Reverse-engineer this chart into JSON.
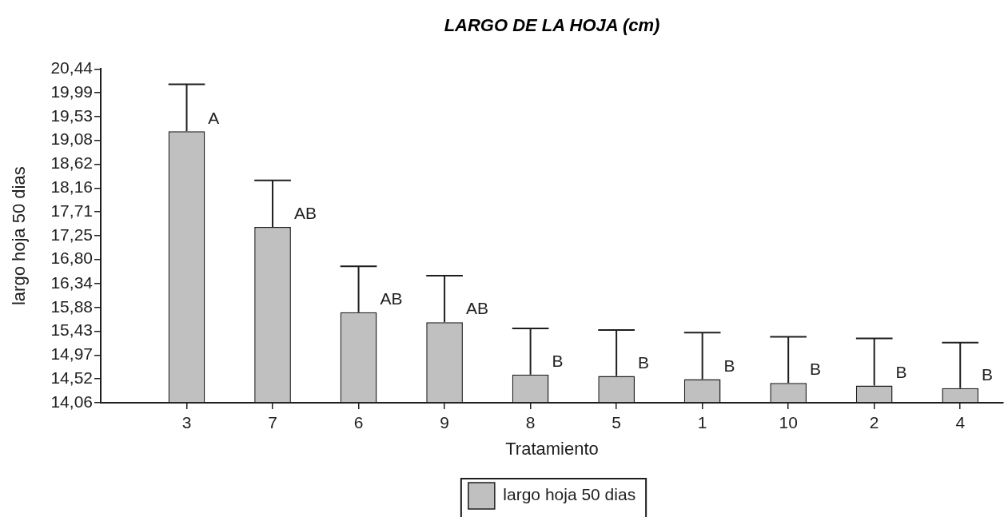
{
  "chart_data": {
    "type": "bar",
    "title": "LARGO DE LA HOJA (cm)",
    "xlabel": "Tratamiento",
    "ylabel": "largo hoja 50 dias",
    "categories": [
      "3",
      "7",
      "6",
      "9",
      "8",
      "5",
      "1",
      "10",
      "2",
      "4"
    ],
    "series": [
      {
        "name": "largo hoja 50 dias",
        "color": "#c0c0c0",
        "values": [
          19.25,
          17.42,
          15.79,
          15.6,
          14.6,
          14.57,
          14.51,
          14.44,
          14.39,
          14.34
        ],
        "errors": [
          [
            19.25,
            20.15
          ],
          [
            17.42,
            18.31
          ],
          [
            15.79,
            16.67
          ],
          [
            15.6,
            16.49
          ],
          [
            14.6,
            15.48
          ],
          [
            14.57,
            15.45
          ],
          [
            14.51,
            15.4
          ],
          [
            14.44,
            15.32
          ],
          [
            14.39,
            15.29
          ],
          [
            14.34,
            15.21
          ]
        ]
      }
    ],
    "ylim": [
      14.06,
      20.44
    ],
    "yticks": [
      {
        "value": 14.06,
        "label": "14,06"
      },
      {
        "value": 14.52,
        "label": "14,52"
      },
      {
        "value": 14.97,
        "label": "14,97"
      },
      {
        "value": 15.43,
        "label": "15,43"
      },
      {
        "value": 15.88,
        "label": "15,88"
      },
      {
        "value": 16.34,
        "label": "16,34"
      },
      {
        "value": 16.8,
        "label": "16,80"
      },
      {
        "value": 17.25,
        "label": "17,25"
      },
      {
        "value": 17.71,
        "label": "17,71"
      },
      {
        "value": 18.16,
        "label": "18,16"
      },
      {
        "value": 18.62,
        "label": "18,62"
      },
      {
        "value": 19.08,
        "label": "19,08"
      },
      {
        "value": 19.53,
        "label": "19,53"
      },
      {
        "value": 19.99,
        "label": "19,99"
      },
      {
        "value": 20.44,
        "label": "20,44"
      }
    ],
    "annotations": [
      {
        "text": "A",
        "x": "3",
        "y": 19.25
      },
      {
        "text": "AB",
        "x": "7",
        "y": 17.42
      },
      {
        "text": "AB",
        "x": "6",
        "y": 15.79
      },
      {
        "text": "AB",
        "x": "9",
        "y": 15.6
      },
      {
        "text": "B",
        "x": "8",
        "y": 14.6
      },
      {
        "text": "B",
        "x": "5",
        "y": 14.57
      },
      {
        "text": "B",
        "x": "1",
        "y": 14.51
      },
      {
        "text": "B",
        "x": "10",
        "y": 14.44
      },
      {
        "text": "B",
        "x": "2",
        "y": 14.39
      },
      {
        "text": "B",
        "x": "4",
        "y": 14.34
      }
    ],
    "legend": "bottom"
  }
}
